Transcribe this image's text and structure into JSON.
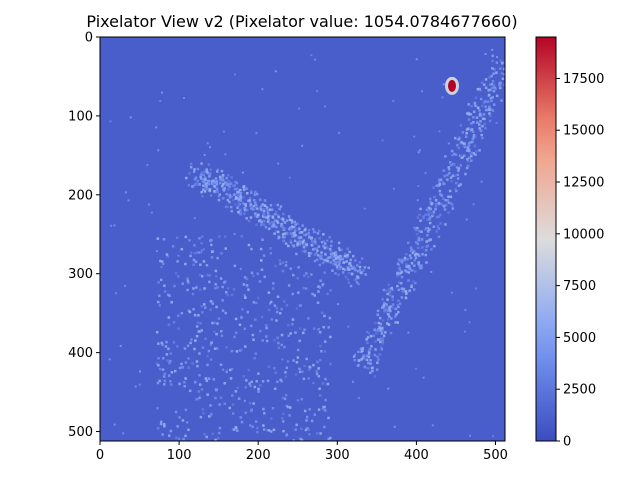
{
  "chart_data": {
    "type": "heatmap",
    "title": "Pixelator View v2 (Pixelator value: 1054.0784677660)",
    "xlabel": "",
    "ylabel": "",
    "xlim": [
      0,
      512
    ],
    "ylim": [
      512,
      0
    ],
    "x_ticks": [
      0,
      100,
      200,
      300,
      400,
      500
    ],
    "y_ticks": [
      0,
      100,
      200,
      300,
      400,
      500
    ],
    "colorbar": {
      "colormap": "coolwarm",
      "min": 0,
      "max": 19500,
      "ticks": [
        0,
        2500,
        5000,
        7500,
        10000,
        12500,
        15000,
        17500
      ]
    },
    "background_value": 1000,
    "bands": [
      {
        "name": "upper-right diagonal",
        "x": [
          330,
          510
        ],
        "y": [
          30,
          420
        ],
        "value": 5000
      },
      {
        "name": "central diagonal",
        "x": [
          120,
          330
        ],
        "y": [
          170,
          300
        ],
        "value": 5000
      },
      {
        "name": "lower-left cluster",
        "x": [
          70,
          290
        ],
        "y": [
          250,
          512
        ],
        "value": 5000
      }
    ],
    "hotspot": {
      "x": 445,
      "y": 62,
      "value": 19500
    },
    "colors": {
      "background": "#3b4cc0",
      "low": "#5a78e4",
      "mid": "#8fb1fe",
      "high_mid": "#dddcdc",
      "peak": "#b40426"
    }
  }
}
